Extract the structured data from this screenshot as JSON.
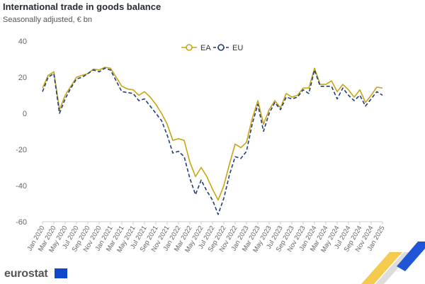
{
  "header": {
    "title": "International trade in goods balance",
    "subtitle": "Seasonally adjusted, € bn"
  },
  "brand": {
    "logo_text": "eurostat",
    "flag_color": "#0e47cb"
  },
  "colors": {
    "EA": "#c8a415",
    "EU": "#1f3d7a",
    "axis": "#cccccc",
    "tick_text": "#666666"
  },
  "chart_data": {
    "type": "line",
    "title": "International trade in goods balance",
    "subtitle": "Seasonally adjusted, € bn",
    "xlabel": "",
    "ylabel": "",
    "ylim": [
      -60,
      40
    ],
    "yticks": [
      -60,
      -40,
      -20,
      0,
      20,
      40
    ],
    "grid": false,
    "legend_position": "top-center",
    "x_tick_labels": [
      "Jan 2020",
      "Mar 2020",
      "May 2020",
      "Jul 2020",
      "Sep 2020",
      "Nov 2020",
      "Jan 2021",
      "Mar 2021",
      "May 2021",
      "Jul 2021",
      "Sep 2021",
      "Nov 2021",
      "Jan 2022",
      "Mar 2022",
      "May 2022",
      "Jul 2022",
      "Sep 2022",
      "Nov 2022",
      "Jan 2023",
      "Mar 2023",
      "May 2023",
      "Jul 2023",
      "Sep 2023",
      "Nov 2023",
      "Jan 2024",
      "Mar 2024",
      "May 2024",
      "Jul 2024",
      "Sep 2024",
      "Nov 2024",
      "Jan 2025"
    ],
    "x_start": "Jan 2020",
    "x_end": "Feb 2025",
    "series": [
      {
        "name": "EA",
        "style": "solid",
        "values": [
          14,
          21,
          23,
          2,
          10,
          15,
          20,
          21,
          22,
          24.5,
          24,
          25.5,
          25,
          20,
          15,
          13.5,
          13,
          10,
          12,
          9,
          5,
          0,
          -6,
          -15,
          -14,
          -15,
          -27,
          -35,
          -30,
          -35,
          -42,
          -48,
          -40,
          -28,
          -17,
          -19,
          -16,
          -3,
          7,
          -6,
          2,
          7,
          3,
          11,
          9,
          10,
          14,
          14,
          25,
          16,
          16,
          18,
          12,
          16,
          13,
          9,
          13,
          6,
          10,
          14.5,
          14
        ]
      },
      {
        "name": "EU",
        "style": "dashed",
        "values": [
          12,
          20,
          22,
          0,
          8,
          14,
          19,
          20,
          22,
          24,
          23,
          25,
          24,
          18,
          12,
          11.5,
          11,
          7,
          8,
          4,
          0,
          -4,
          -12,
          -22,
          -21,
          -24,
          -36,
          -45,
          -37,
          -43,
          -48,
          -56,
          -47,
          -34,
          -24,
          -25,
          -21,
          -6,
          5,
          -10,
          0,
          6,
          2,
          9,
          8,
          9,
          13,
          11,
          24,
          15,
          15,
          15,
          8,
          14,
          10,
          7,
          10,
          4,
          8,
          12,
          10
        ]
      }
    ]
  }
}
